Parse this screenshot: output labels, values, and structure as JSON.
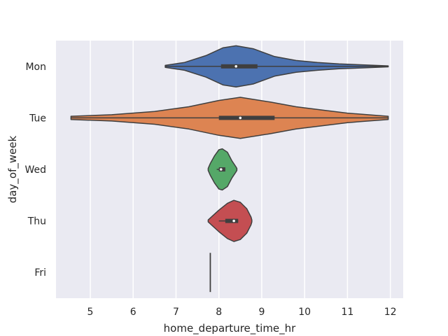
{
  "chart_data": {
    "type": "violin",
    "orientation": "horizontal",
    "xlabel": "home_departure_time_hr",
    "ylabel": "day_of_week",
    "xlim": [
      4.2,
      12.3
    ],
    "xticks": [
      5,
      6,
      7,
      8,
      9,
      10,
      11,
      12
    ],
    "grid": true,
    "background": "#eaeaf2",
    "categories": [
      "Mon",
      "Tue",
      "Wed",
      "Thu",
      "Fri"
    ],
    "series": [
      {
        "category": "Mon",
        "color": "#4c72b0",
        "min": 6.75,
        "q1": 8.05,
        "median": 8.4,
        "q3": 8.9,
        "max": 11.95,
        "density": [
          [
            6.75,
            0.02
          ],
          [
            7.2,
            0.08
          ],
          [
            7.7,
            0.22
          ],
          [
            8.1,
            0.38
          ],
          [
            8.4,
            0.42
          ],
          [
            8.8,
            0.36
          ],
          [
            9.3,
            0.2
          ],
          [
            9.8,
            0.12
          ],
          [
            10.3,
            0.08
          ],
          [
            10.8,
            0.05
          ],
          [
            11.4,
            0.03
          ],
          [
            11.95,
            0.01
          ]
        ]
      },
      {
        "category": "Tue",
        "color": "#dd8452",
        "min": 4.55,
        "q1": 8.0,
        "median": 8.5,
        "q3": 9.3,
        "max": 11.95,
        "density": [
          [
            4.55,
            0.01
          ],
          [
            5.5,
            0.02
          ],
          [
            6.5,
            0.04
          ],
          [
            7.3,
            0.07
          ],
          [
            8.0,
            0.11
          ],
          [
            8.5,
            0.13
          ],
          [
            9.2,
            0.1
          ],
          [
            9.8,
            0.07
          ],
          [
            10.4,
            0.05
          ],
          [
            11.0,
            0.03
          ],
          [
            11.95,
            0.01
          ]
        ]
      },
      {
        "category": "Wed",
        "color": "#55a868",
        "min": 7.95,
        "q1": 8.0,
        "median": 8.05,
        "q3": 8.15,
        "max": 8.15,
        "density": [
          [
            7.75,
            0.02
          ],
          [
            7.8,
            0.12
          ],
          [
            7.9,
            0.28
          ],
          [
            8.0,
            0.4
          ],
          [
            8.08,
            0.42
          ],
          [
            8.2,
            0.35
          ],
          [
            8.3,
            0.18
          ],
          [
            8.4,
            0.05
          ],
          [
            8.42,
            0.02
          ]
        ]
      },
      {
        "category": "Thu",
        "color": "#c44e52",
        "min": 8.0,
        "q1": 8.15,
        "median": 8.35,
        "q3": 8.45,
        "max": 8.45,
        "density": [
          [
            7.75,
            0.02
          ],
          [
            7.85,
            0.1
          ],
          [
            8.0,
            0.22
          ],
          [
            8.2,
            0.36
          ],
          [
            8.35,
            0.42
          ],
          [
            8.5,
            0.38
          ],
          [
            8.65,
            0.25
          ],
          [
            8.75,
            0.08
          ],
          [
            8.77,
            0.02
          ]
        ]
      },
      {
        "category": "Fri",
        "color": "#8172b3",
        "min": 7.8,
        "q1": 7.8,
        "median": 7.8,
        "q3": 7.8,
        "max": 7.8,
        "density": []
      }
    ]
  }
}
